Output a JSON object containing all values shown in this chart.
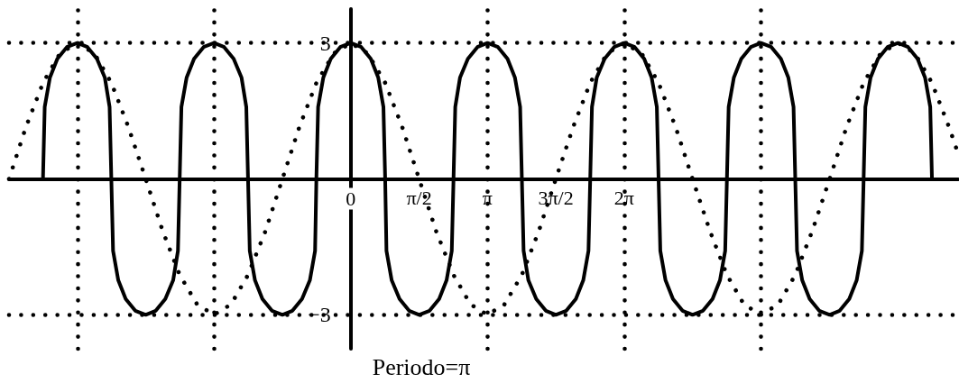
{
  "chart_data": {
    "type": "line",
    "xlabel": "Periodo=π",
    "xlim": [
      -7.85,
      13.95
    ],
    "xticks": [
      0,
      {
        "value": 1.57,
        "label": "π/2"
      },
      {
        "value": 3.14,
        "label": "π"
      },
      {
        "value": 4.71,
        "label": "3π/2"
      },
      {
        "value": 6.28,
        "label": "2π"
      }
    ],
    "ylim": [
      -3.75,
      3.75
    ],
    "yticks": [
      {
        "value": -3,
        "label": "−3"
      },
      3
    ],
    "grid": false,
    "marker": "none",
    "ref_lines": [
      {
        "axis": "x",
        "value": -6.28,
        "color": "#000000",
        "line_style": "dotted"
      },
      {
        "axis": "x",
        "value": -3.14,
        "color": "#000000",
        "line_style": "dotted"
      },
      {
        "axis": "x",
        "value": 3.14,
        "color": "#000000",
        "line_style": "dotted"
      },
      {
        "axis": "x",
        "value": 6.28,
        "color": "#000000",
        "line_style": "dotted"
      },
      {
        "axis": "x",
        "value": 9.42,
        "color": "#000000",
        "line_style": "dotted"
      },
      {
        "axis": "y",
        "value": 3,
        "color": "#000000",
        "line_style": "dotted"
      },
      {
        "axis": "y",
        "value": -3,
        "color": "#000000",
        "line_style": "dotted"
      }
    ],
    "series": [
      {
        "color": "#000000",
        "line_style": "dotted",
        "x": [
          -7.85,
          -7.46,
          -7.07,
          -6.68,
          -6.28,
          -5.89,
          -5.5,
          -5.11,
          -4.71,
          -4.32,
          -3.93,
          -3.53,
          -3.14,
          -2.75,
          -2.36,
          -1.96,
          -1.57,
          -1.18,
          -0.79,
          -0.39,
          0,
          0.39,
          0.79,
          1.18,
          1.57,
          1.96,
          2.36,
          2.75,
          3.14,
          3.53,
          3.93,
          4.32,
          4.71,
          5.11,
          5.5,
          5.89,
          6.28,
          6.68,
          7.07,
          7.46,
          7.85,
          8.25,
          8.64,
          9.03,
          9.42,
          9.82,
          10.21,
          10.6,
          11.0,
          11.39,
          11.78,
          12.17,
          12.57,
          12.96,
          13.35,
          13.74,
          13.95
        ],
        "values": [
          0,
          1.15,
          2.12,
          2.77,
          3,
          2.77,
          2.12,
          1.15,
          0,
          -1.15,
          -2.12,
          -2.77,
          -3,
          -2.77,
          -2.12,
          -1.15,
          0,
          1.15,
          2.12,
          2.77,
          3,
          2.77,
          2.12,
          1.15,
          0,
          -1.15,
          -2.12,
          -2.77,
          -3,
          -2.77,
          -2.12,
          -1.15,
          0,
          1.15,
          2.12,
          2.77,
          3,
          2.77,
          2.12,
          1.15,
          0,
          -1.15,
          -2.12,
          -2.77,
          -3,
          -2.77,
          -2.12,
          -1.15,
          0,
          1.15,
          2.12,
          2.77,
          3,
          2.77,
          2.12,
          1.15,
          0.56
        ]
      },
      {
        "color": "#000000",
        "line_style": "solid",
        "x": [
          -7.07,
          -7.03,
          -6.91,
          -6.74,
          -6.52,
          -6.28,
          -6.05,
          -5.83,
          -5.65,
          -5.54,
          -5.5,
          -5.46,
          -5.34,
          -5.17,
          -4.95,
          -4.71,
          -4.48,
          -4.26,
          -4.08,
          -3.97,
          -3.93,
          -3.89,
          -3.77,
          -3.6,
          -3.38,
          -3.14,
          -2.91,
          -2.69,
          -2.51,
          -2.4,
          -2.36,
          -2.32,
          -2.2,
          -2.03,
          -1.81,
          -1.57,
          -1.34,
          -1.12,
          -0.94,
          -0.82,
          -0.79,
          -0.75,
          -0.63,
          -0.46,
          -0.24,
          0,
          0.24,
          0.46,
          0.63,
          0.75,
          0.79,
          0.82,
          0.94,
          1.12,
          1.34,
          1.57,
          1.81,
          2.03,
          2.2,
          2.32,
          2.36,
          2.4,
          2.51,
          2.69,
          2.91,
          3.14,
          3.38,
          3.6,
          3.77,
          3.89,
          3.93,
          3.97,
          4.08,
          4.26,
          4.48,
          4.71,
          4.95,
          5.17,
          5.34,
          5.46,
          5.5,
          5.54,
          5.65,
          5.83,
          6.05,
          6.28,
          6.52,
          6.74,
          6.91,
          7.03,
          7.07,
          7.11,
          7.23,
          7.4,
          7.62,
          7.85,
          8.09,
          8.31,
          8.48,
          8.6,
          8.64,
          8.68,
          8.8,
          8.97,
          9.19,
          9.42,
          9.66,
          9.88,
          10.05,
          10.17,
          10.21,
          10.25,
          10.37,
          10.54,
          10.76,
          11.0,
          11.23,
          11.45,
          11.62,
          11.74,
          11.78,
          11.82,
          11.94,
          12.11,
          12.33,
          12.57,
          12.8,
          13.02,
          13.19,
          13.31,
          13.35
        ],
        "values": [
          0,
          1.59,
          2.24,
          2.65,
          2.91,
          3,
          2.91,
          2.65,
          2.24,
          1.59,
          0,
          -1.59,
          -2.24,
          -2.65,
          -2.91,
          -3,
          -2.91,
          -2.65,
          -2.24,
          -1.59,
          0,
          1.59,
          2.24,
          2.65,
          2.91,
          3,
          2.91,
          2.65,
          2.24,
          1.59,
          0,
          -1.59,
          -2.24,
          -2.65,
          -2.91,
          -3,
          -2.91,
          -2.65,
          -2.24,
          -1.59,
          0,
          1.59,
          2.24,
          2.65,
          2.91,
          3,
          2.91,
          2.65,
          2.24,
          1.59,
          0,
          -1.59,
          -2.24,
          -2.65,
          -2.91,
          -3,
          -2.91,
          -2.65,
          -2.24,
          -1.59,
          0,
          1.59,
          2.24,
          2.65,
          2.91,
          3,
          2.91,
          2.65,
          2.24,
          1.59,
          0,
          -1.59,
          -2.24,
          -2.65,
          -2.91,
          -3,
          -2.91,
          -2.65,
          -2.24,
          -1.59,
          0,
          1.59,
          2.24,
          2.65,
          2.91,
          3,
          2.91,
          2.65,
          2.24,
          1.59,
          0,
          -1.59,
          -2.24,
          -2.65,
          -2.91,
          -3,
          -2.91,
          -2.65,
          -2.24,
          -1.59,
          0,
          1.59,
          2.24,
          2.65,
          2.91,
          3,
          2.91,
          2.65,
          2.24,
          1.59,
          0,
          -1.59,
          -2.24,
          -2.65,
          -2.91,
          -3,
          -2.91,
          -2.65,
          -2.24,
          -1.59,
          0,
          1.59,
          2.24,
          2.65,
          2.91,
          3,
          2.91,
          2.65,
          2.24,
          1.59,
          0
        ]
      }
    ]
  }
}
